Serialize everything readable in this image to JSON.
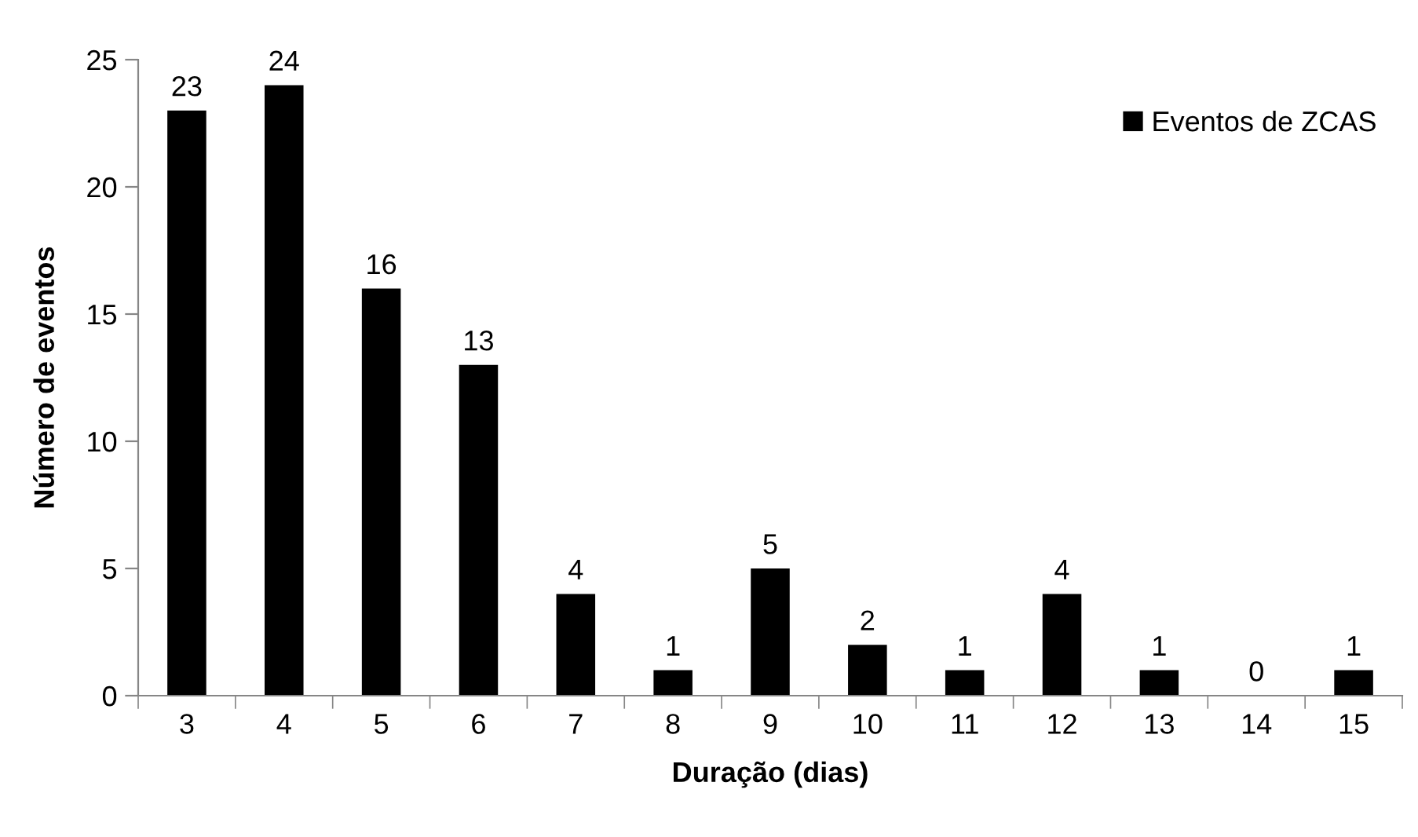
{
  "chart_data": {
    "type": "bar",
    "xlabel": "Duração (dias)",
    "ylabel": "Número de eventos",
    "categories": [
      "3",
      "4",
      "5",
      "6",
      "7",
      "8",
      "9",
      "10",
      "11",
      "12",
      "13",
      "14",
      "15"
    ],
    "series": [
      {
        "name": "Eventos de ZCAS",
        "color": "#000000",
        "values": [
          23,
          24,
          16,
          13,
          4,
          1,
          5,
          2,
          1,
          4,
          1,
          0,
          1
        ]
      }
    ],
    "ylim": [
      0,
      25
    ],
    "yticks": [
      0,
      5,
      10,
      15,
      20,
      25
    ],
    "grid": false,
    "legend": "top right",
    "data_labels": true
  }
}
